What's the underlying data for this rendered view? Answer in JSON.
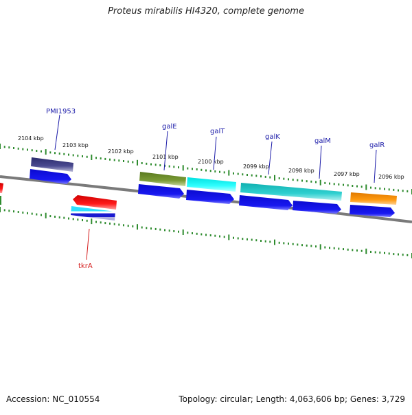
{
  "title": "Proteus mirabilis HI4320, complete genome",
  "footer": {
    "accession": "Accession: NC_010554",
    "summary": "Topology: circular; Length: 4,063,606 bp; Genes: 3,729"
  },
  "colors": {
    "backbone": "#7a7a7a",
    "tick": "#2e8b2e",
    "forward_gene": "#1010e0",
    "reverse_gene": "#e01010",
    "label_forward": "#1a1aa8",
    "label_reverse": "#d41a1a"
  },
  "ticks": [
    {
      "label": "2104 kbp",
      "kbp": 2104
    },
    {
      "label": "2103 kbp",
      "kbp": 2103
    },
    {
      "label": "2102 kbp",
      "kbp": 2102
    },
    {
      "label": "2101 kbp",
      "kbp": 2101
    },
    {
      "label": "2100 kbp",
      "kbp": 2100
    },
    {
      "label": "2099 kbp",
      "kbp": 2099
    },
    {
      "label": "2098 kbp",
      "kbp": 2098
    },
    {
      "label": "2097 kbp",
      "kbp": 2097
    },
    {
      "label": "2096 kbp",
      "kbp": 2096
    }
  ],
  "gene_labels": [
    {
      "name": "PMI1953",
      "strand": "forward"
    },
    {
      "name": "galE",
      "strand": "forward"
    },
    {
      "name": "galT",
      "strand": "forward"
    },
    {
      "name": "galK",
      "strand": "forward"
    },
    {
      "name": "galM",
      "strand": "forward"
    },
    {
      "name": "galR",
      "strand": "forward"
    },
    {
      "name": "tkrA",
      "strand": "reverse"
    }
  ]
}
